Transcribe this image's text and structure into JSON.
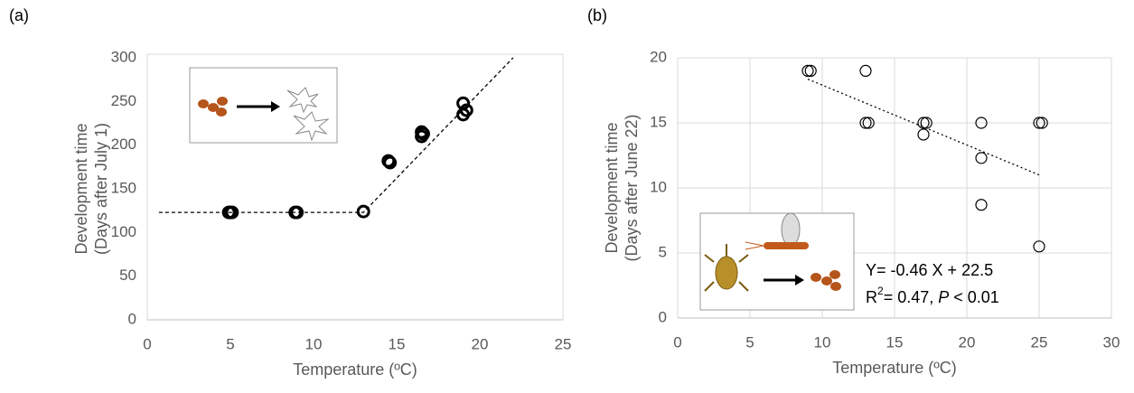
{
  "chart_data": [
    {
      "type": "scatter",
      "panel_label": "(a)",
      "xlabel": "Temperature (ºC)",
      "ylabel": [
        "Development time",
        "(Days after July 1)"
      ],
      "xlim": [
        0,
        25
      ],
      "ylim": [
        0,
        300
      ],
      "xticks": [
        0,
        5,
        10,
        15,
        20,
        25
      ],
      "yticks": [
        0,
        50,
        100,
        150,
        200,
        250,
        300
      ],
      "grid": false,
      "marker_stroke": 3,
      "series": [
        {
          "kind": "points",
          "color": "#000000",
          "x": [
            4.9,
            5.0,
            5.1,
            8.9,
            9.0,
            13.0,
            14.5,
            14.6,
            16.5,
            16.5,
            16.6,
            19.0,
            19.0,
            19.2
          ],
          "values": [
            123,
            123,
            123,
            123,
            123,
            124,
            182,
            180,
            215,
            210,
            213,
            248,
            235,
            240
          ]
        },
        {
          "kind": "trend",
          "color": "#000000",
          "style": "dashed",
          "x": [
            0.7,
            13,
            22
          ],
          "values": [
            123,
            123,
            300
          ]
        }
      ]
    },
    {
      "type": "scatter",
      "panel_label": "(b)",
      "xlabel": "Temperature (ºC)",
      "ylabel": [
        "Development time",
        "(Days after June 22)"
      ],
      "xlim": [
        0,
        30
      ],
      "ylim": [
        0,
        20
      ],
      "xticks": [
        0,
        5,
        10,
        15,
        20,
        25,
        30
      ],
      "yticks": [
        0,
        5,
        10,
        15,
        20
      ],
      "grid": true,
      "marker_stroke": 1.2,
      "annotations": [
        "Y= -0.46 X + 22.5",
        "R",
        "2",
        "= 0.47, ",
        "P",
        " < 0.01"
      ],
      "series": [
        {
          "kind": "points",
          "color": "#000000",
          "x": [
            9.0,
            9.2,
            13.0,
            13.0,
            13.2,
            17.0,
            17.2,
            17.0,
            21.0,
            21.0,
            21.0,
            25.0,
            25.2,
            25.0
          ],
          "values": [
            19,
            19,
            19,
            15,
            15,
            15,
            15,
            14.1,
            15,
            12.3,
            8.7,
            15,
            15,
            5.5
          ]
        },
        {
          "kind": "trend",
          "color": "#000000",
          "style": "dotted",
          "x": [
            9,
            25
          ],
          "values": [
            18.36,
            11.0
          ]
        }
      ]
    }
  ]
}
